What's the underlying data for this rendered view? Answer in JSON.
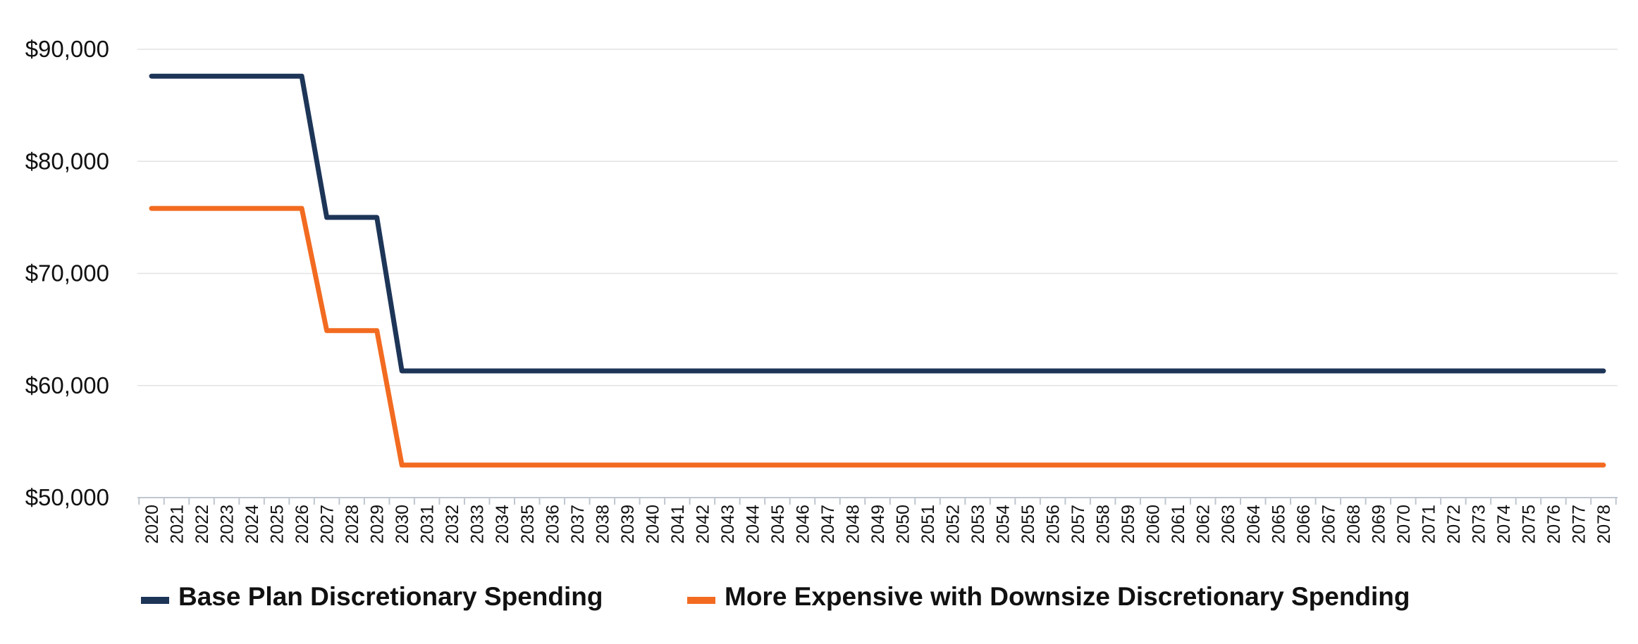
{
  "chart_data": {
    "type": "line",
    "title": "",
    "xlabel": "",
    "ylabel": "",
    "x": [
      2020,
      2021,
      2022,
      2023,
      2024,
      2025,
      2026,
      2027,
      2028,
      2029,
      2030,
      2031,
      2032,
      2033,
      2034,
      2035,
      2036,
      2037,
      2038,
      2039,
      2040,
      2041,
      2042,
      2043,
      2044,
      2045,
      2046,
      2047,
      2048,
      2049,
      2050,
      2051,
      2052,
      2053,
      2054,
      2055,
      2056,
      2057,
      2058,
      2059,
      2060,
      2061,
      2062,
      2063,
      2064,
      2065,
      2066,
      2067,
      2068,
      2069,
      2070,
      2071,
      2072,
      2073,
      2074,
      2075,
      2076,
      2077,
      2078
    ],
    "y_ticks": [
      "$50,000",
      "$60,000",
      "$70,000",
      "$80,000",
      "$90,000"
    ],
    "y_tick_values": [
      50000,
      60000,
      70000,
      80000,
      90000
    ],
    "ylim": [
      50000,
      90000
    ],
    "grid": true,
    "legend_position": "bottom-left",
    "series": [
      {
        "name": "Base Plan Discretionary Spending",
        "color": "#1d3557",
        "values": [
          87600,
          87600,
          87600,
          87600,
          87600,
          87600,
          87600,
          75000,
          75000,
          75000,
          61300,
          61300,
          61300,
          61300,
          61300,
          61300,
          61300,
          61300,
          61300,
          61300,
          61300,
          61300,
          61300,
          61300,
          61300,
          61300,
          61300,
          61300,
          61300,
          61300,
          61300,
          61300,
          61300,
          61300,
          61300,
          61300,
          61300,
          61300,
          61300,
          61300,
          61300,
          61300,
          61300,
          61300,
          61300,
          61300,
          61300,
          61300,
          61300,
          61300,
          61300,
          61300,
          61300,
          61300,
          61300,
          61300,
          61300,
          61300,
          61300
        ]
      },
      {
        "name": "More Expensive with Downsize Discretionary Spending",
        "color": "#f26b21",
        "values": [
          75800,
          75800,
          75800,
          75800,
          75800,
          75800,
          75800,
          64900,
          64900,
          64900,
          52900,
          52900,
          52900,
          52900,
          52900,
          52900,
          52900,
          52900,
          52900,
          52900,
          52900,
          52900,
          52900,
          52900,
          52900,
          52900,
          52900,
          52900,
          52900,
          52900,
          52900,
          52900,
          52900,
          52900,
          52900,
          52900,
          52900,
          52900,
          52900,
          52900,
          52900,
          52900,
          52900,
          52900,
          52900,
          52900,
          52900,
          52900,
          52900,
          52900,
          52900,
          52900,
          52900,
          52900,
          52900,
          52900,
          52900,
          52900,
          52900
        ]
      }
    ]
  }
}
